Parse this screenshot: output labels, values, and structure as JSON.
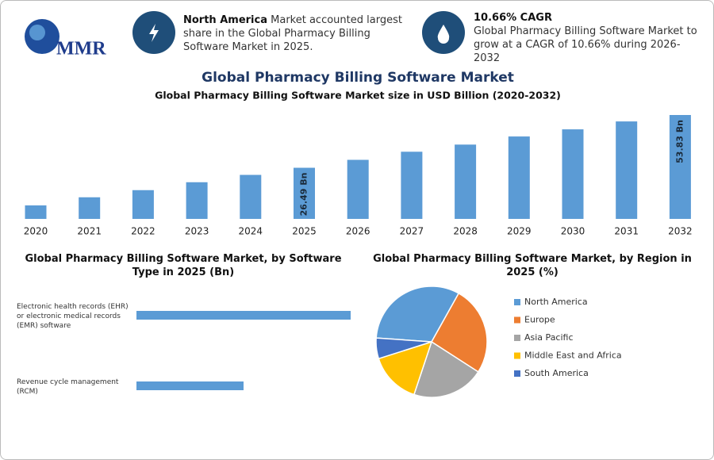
{
  "header": {
    "logo": "MMR",
    "callouts": [
      {
        "bold": "North America",
        "text": "Market accounted largest share in the Global Pharmacy Billing Software Market in 2025."
      },
      {
        "bold": "10.66% CAGR",
        "text": "Global Pharmacy Billing Software Market to grow at a CAGR of 10.66% during 2026-2032"
      }
    ]
  },
  "title": "Global Pharmacy Billing Software Market",
  "chart_data": [
    {
      "type": "bar",
      "title": "Global Pharmacy Billing Software Market size in USD Billion (2020-2032)",
      "categories": [
        "2020",
        "2021",
        "2022",
        "2023",
        "2024",
        "2025",
        "2026",
        "2027",
        "2028",
        "2029",
        "2030",
        "2031",
        "2032"
      ],
      "values": [
        7.0,
        11.2,
        14.9,
        19.0,
        22.8,
        26.49,
        30.6,
        34.8,
        38.5,
        42.7,
        46.4,
        50.5,
        53.83
      ],
      "value_labels": [
        null,
        null,
        null,
        null,
        null,
        "26.49 Bn",
        null,
        null,
        null,
        null,
        null,
        null,
        "53.83 Bn"
      ],
      "color": "#5b9bd5"
    },
    {
      "type": "hbar",
      "title": "Global Pharmacy Billing Software Market, by Software Type in 2025 (Bn)",
      "categories": [
        "Electronic health records (EHR) or electronic medical records (EMR) software",
        "Revenue cycle management (RCM)"
      ],
      "values": [
        17.66,
        8.83
      ],
      "color": "#5b9bd5"
    },
    {
      "type": "pie",
      "title": "Global Pharmacy Billing Software Market, by Region in 2025 (%)",
      "categories": [
        "North America",
        "Europe",
        "Asia Pacific",
        "Middle East and Africa",
        "South America"
      ],
      "values": [
        32,
        26,
        21,
        15,
        6
      ],
      "colors": [
        "#5b9bd5",
        "#ed7d31",
        "#a5a5a5",
        "#ffc000",
        "#4472c4"
      ]
    }
  ]
}
